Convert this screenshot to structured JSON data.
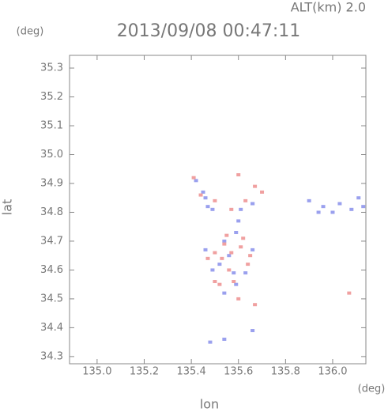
{
  "chart_data": {
    "type": "scatter",
    "title": "2013/09/08 00:47:11",
    "subtitle": "ALT(km) 2.0",
    "y_unit": "(deg)",
    "x_unit": "(deg)",
    "ylabel": "lat",
    "xlabel": "lon",
    "xlim": [
      134.883,
      136.141
    ],
    "ylim": [
      34.275,
      35.344
    ],
    "xticks": [
      {
        "value": 135.0,
        "label": "135.0"
      },
      135.2,
      135.4,
      135.6,
      135.8,
      {
        "value": 136.0,
        "label": "136.0"
      }
    ],
    "yticks": [
      34.3,
      34.4,
      34.5,
      34.6,
      34.7,
      34.8,
      34.9,
      {
        "value": 35.0,
        "label": "35.0"
      },
      35.1,
      35.2,
      35.3
    ],
    "series": [
      {
        "color": "#9aa0ee",
        "x": [
          135.42,
          135.45,
          135.47,
          135.46,
          135.49,
          135.61,
          135.66,
          135.59,
          135.54,
          135.56,
          135.58,
          135.59,
          135.54,
          135.63,
          135.66,
          135.46,
          135.49,
          135.9,
          135.96,
          136.03,
          136.08,
          136.11,
          136.13,
          136.0,
          135.94,
          135.54,
          135.48,
          135.66,
          135.6,
          135.52,
          135.66
        ],
        "y": [
          34.91,
          34.87,
          34.82,
          34.85,
          34.81,
          34.81,
          34.83,
          34.73,
          34.7,
          34.65,
          34.59,
          34.55,
          34.52,
          34.59,
          34.67,
          34.67,
          34.6,
          34.84,
          34.82,
          34.83,
          34.81,
          34.85,
          34.82,
          34.8,
          34.8,
          34.36,
          34.35,
          34.39,
          34.77,
          34.62,
          34.83
        ]
      },
      {
        "color": "#f0a0a0",
        "x": [
          135.41,
          135.5,
          135.44,
          135.6,
          135.67,
          135.63,
          135.57,
          135.7,
          135.55,
          135.5,
          135.47,
          135.53,
          135.57,
          135.61,
          135.64,
          135.56,
          135.52,
          135.6,
          135.67,
          135.58,
          135.62,
          136.07,
          135.54,
          135.5,
          135.65
        ],
        "y": [
          34.92,
          34.84,
          34.86,
          34.93,
          34.89,
          34.84,
          34.81,
          34.87,
          34.72,
          34.66,
          34.64,
          34.64,
          34.66,
          34.68,
          34.62,
          34.6,
          34.55,
          34.5,
          34.48,
          34.56,
          34.71,
          34.52,
          34.69,
          34.56,
          34.65
        ]
      }
    ]
  }
}
